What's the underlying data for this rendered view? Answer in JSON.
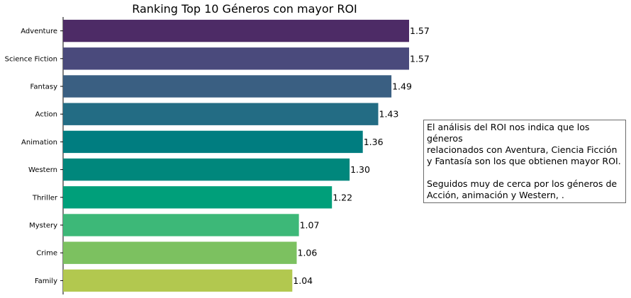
{
  "chart_data": {
    "type": "bar",
    "orientation": "horizontal",
    "title": "Ranking Top 10 Géneros con mayor ROI",
    "xlabel": "",
    "ylabel": "",
    "categories": [
      "Adventure",
      "Science Fiction",
      "Fantasy",
      "Action",
      "Animation",
      "Western",
      "Thriller",
      "Mystery",
      "Crime",
      "Family"
    ],
    "values": [
      1.57,
      1.57,
      1.49,
      1.43,
      1.36,
      1.3,
      1.22,
      1.07,
      1.06,
      1.04
    ],
    "value_labels": [
      "1.57",
      "1.57",
      "1.49",
      "1.43",
      "1.36",
      "1.30",
      "1.22",
      "1.07",
      "1.06",
      "1.04"
    ],
    "colors": [
      "#4d2b66",
      "#4a4a7c",
      "#3a5f82",
      "#236c84",
      "#007d80",
      "#00877c",
      "#009f7a",
      "#3db878",
      "#7cc160",
      "#b2c84f"
    ],
    "xlim": [
      0,
      1.57
    ],
    "grid": false,
    "legend": "none",
    "x_axis_visible": false
  },
  "annotation": {
    "line1": "El análisis del ROI nos indica que los géneros",
    "line2": "relacionados con Aventura, Ciencia Ficción",
    "line3": "y Fantasía son los que obtienen mayor ROI.",
    "line4": "Seguidos muy de cerca por los géneros de",
    "line5": "Acción, animación y Western, ."
  }
}
